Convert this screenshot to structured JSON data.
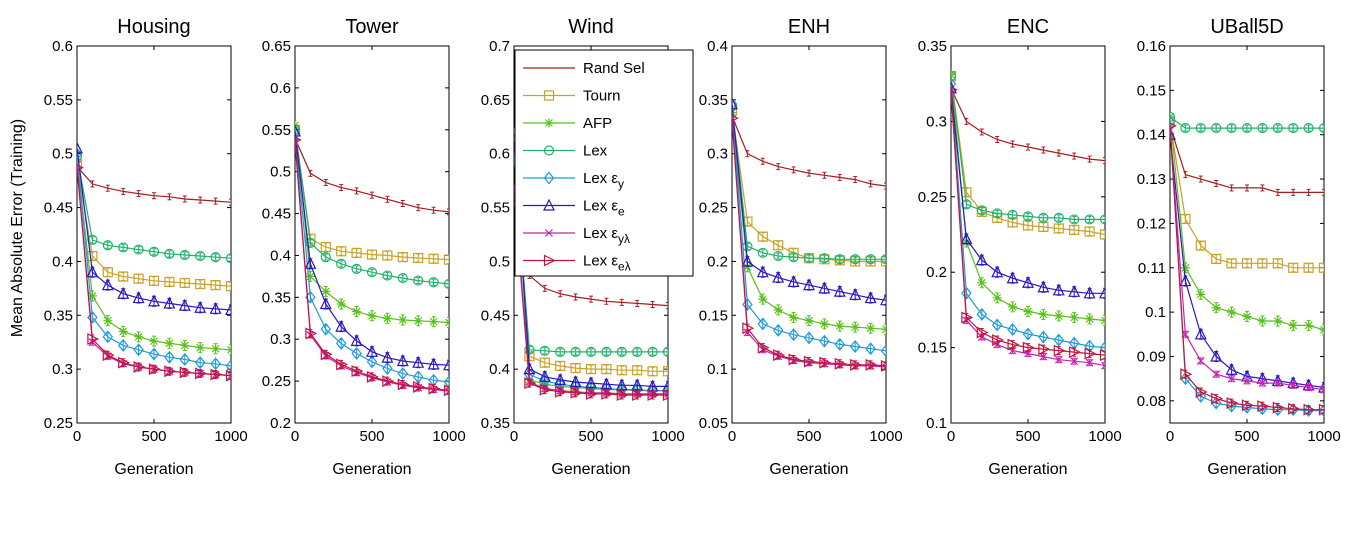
{
  "ylabel": "Mean Absolute Error (Training)",
  "legend": [
    {
      "label": "Rand Sel",
      "sub": "",
      "color": "#a31e1e",
      "marker": "none"
    },
    {
      "label": "Tourn",
      "sub": "",
      "color": "#c9a227",
      "marker": "square"
    },
    {
      "label": "AFP",
      "sub": "",
      "color": "#58c21c",
      "marker": "star"
    },
    {
      "label": "Lex",
      "sub": "",
      "color": "#1fb36a",
      "marker": "circle"
    },
    {
      "label": "Lex ε",
      "sub": "y",
      "color": "#1f9bd6",
      "marker": "diamond"
    },
    {
      "label": "Lex ε",
      "sub": "e",
      "color": "#2a18c0",
      "marker": "triangle"
    },
    {
      "label": "Lex ε",
      "sub": "yλ",
      "color": "#c424b4",
      "marker": "x"
    },
    {
      "label": "Lex ε",
      "sub": "eλ",
      "color": "#c0153c",
      "marker": "tri-right"
    }
  ],
  "chart_data": [
    {
      "type": "line",
      "title": "Housing",
      "xlabel": "Generation",
      "ylabel": "Mean Absolute Error (Training)",
      "xlim": [
        0,
        1000
      ],
      "ylim": [
        0.25,
        0.6
      ],
      "xticks": [
        "0",
        "500",
        "1000"
      ],
      "xtick_values": [
        0,
        500,
        1000
      ],
      "yticks": [
        "0.25",
        "0.3",
        "0.35",
        "0.4",
        "0.45",
        "0.5",
        "0.55",
        "0.6"
      ],
      "ytick_values": [
        0.25,
        0.3,
        0.35,
        0.4,
        0.45,
        0.5,
        0.55,
        0.6
      ],
      "x": [
        0,
        100,
        200,
        300,
        400,
        500,
        600,
        700,
        800,
        900,
        1000
      ],
      "series": [
        {
          "name": "Rand Sel",
          "values": [
            0.488,
            0.472,
            0.468,
            0.465,
            0.463,
            0.461,
            0.46,
            0.458,
            0.457,
            0.456,
            0.455
          ]
        },
        {
          "name": "Tourn",
          "values": [
            0.49,
            0.405,
            0.39,
            0.386,
            0.384,
            0.382,
            0.381,
            0.38,
            0.379,
            0.378,
            0.377
          ]
        },
        {
          "name": "AFP",
          "values": [
            0.495,
            0.368,
            0.345,
            0.335,
            0.33,
            0.326,
            0.324,
            0.322,
            0.32,
            0.319,
            0.318
          ]
        },
        {
          "name": "Lex",
          "values": [
            0.498,
            0.42,
            0.415,
            0.413,
            0.411,
            0.409,
            0.407,
            0.406,
            0.405,
            0.404,
            0.403
          ]
        },
        {
          "name": "Lex ε y",
          "values": [
            0.5,
            0.348,
            0.33,
            0.322,
            0.318,
            0.314,
            0.311,
            0.309,
            0.306,
            0.305,
            0.303
          ]
        },
        {
          "name": "Lex ε e",
          "values": [
            0.505,
            0.39,
            0.378,
            0.37,
            0.366,
            0.363,
            0.361,
            0.359,
            0.357,
            0.356,
            0.355
          ]
        },
        {
          "name": "Lex ε yλ",
          "values": [
            0.49,
            0.325,
            0.312,
            0.305,
            0.302,
            0.3,
            0.298,
            0.297,
            0.296,
            0.295,
            0.294
          ]
        },
        {
          "name": "Lex ε eλ",
          "values": [
            0.487,
            0.328,
            0.313,
            0.306,
            0.302,
            0.3,
            0.298,
            0.297,
            0.296,
            0.295,
            0.294
          ]
        }
      ]
    },
    {
      "type": "line",
      "title": "Tower",
      "xlabel": "Generation",
      "xlim": [
        0,
        1000
      ],
      "ylim": [
        0.2,
        0.65
      ],
      "xticks": [
        "0",
        "500",
        "1000"
      ],
      "xtick_values": [
        0,
        500,
        1000
      ],
      "yticks": [
        "0.2",
        "0.25",
        "0.3",
        "0.35",
        "0.4",
        "0.45",
        "0.5",
        "0.55",
        "0.6",
        "0.65"
      ],
      "ytick_values": [
        0.2,
        0.25,
        0.3,
        0.35,
        0.4,
        0.45,
        0.5,
        0.55,
        0.6,
        0.65
      ],
      "x": [
        0,
        100,
        200,
        300,
        400,
        500,
        600,
        700,
        800,
        900,
        1000
      ],
      "series": [
        {
          "name": "Rand Sel",
          "values": [
            0.54,
            0.498,
            0.487,
            0.481,
            0.477,
            0.472,
            0.467,
            0.462,
            0.457,
            0.454,
            0.452
          ]
        },
        {
          "name": "Tourn",
          "values": [
            0.55,
            0.42,
            0.41,
            0.405,
            0.403,
            0.401,
            0.4,
            0.398,
            0.397,
            0.396,
            0.395
          ]
        },
        {
          "name": "AFP",
          "values": [
            0.555,
            0.375,
            0.357,
            0.342,
            0.333,
            0.328,
            0.325,
            0.323,
            0.322,
            0.321,
            0.32
          ]
        },
        {
          "name": "Lex",
          "values": [
            0.55,
            0.415,
            0.398,
            0.39,
            0.384,
            0.38,
            0.376,
            0.373,
            0.37,
            0.368,
            0.366
          ]
        },
        {
          "name": "Lex ε y",
          "values": [
            0.545,
            0.35,
            0.312,
            0.295,
            0.283,
            0.273,
            0.265,
            0.259,
            0.255,
            0.251,
            0.249
          ]
        },
        {
          "name": "Lex ε e",
          "values": [
            0.548,
            0.39,
            0.342,
            0.315,
            0.298,
            0.285,
            0.278,
            0.274,
            0.272,
            0.27,
            0.269
          ]
        },
        {
          "name": "Lex ε yλ",
          "values": [
            0.535,
            0.305,
            0.28,
            0.268,
            0.26,
            0.254,
            0.249,
            0.245,
            0.242,
            0.24,
            0.238
          ]
        },
        {
          "name": "Lex ε eλ",
          "values": [
            0.538,
            0.307,
            0.282,
            0.27,
            0.262,
            0.255,
            0.25,
            0.246,
            0.243,
            0.241,
            0.239
          ]
        }
      ]
    },
    {
      "type": "line",
      "title": "Wind",
      "xlabel": "Generation",
      "xlim": [
        0,
        1000
      ],
      "ylim": [
        0.35,
        0.7
      ],
      "xticks": [
        "0",
        "500",
        "1000"
      ],
      "xtick_values": [
        0,
        500,
        1000
      ],
      "yticks": [
        "0.35",
        "0.4",
        "0.45",
        "0.5",
        "0.55",
        "0.6",
        "0.65",
        "0.7"
      ],
      "ytick_values": [
        0.35,
        0.4,
        0.45,
        0.5,
        0.55,
        0.6,
        0.65,
        0.7
      ],
      "x": [
        0,
        100,
        200,
        300,
        400,
        500,
        600,
        700,
        800,
        900,
        1000
      ],
      "series": [
        {
          "name": "Rand Sel",
          "values": [
            0.555,
            0.487,
            0.475,
            0.47,
            0.467,
            0.465,
            0.463,
            0.462,
            0.461,
            0.46,
            0.459
          ]
        },
        {
          "name": "Tourn",
          "values": [
            0.6,
            0.412,
            0.406,
            0.403,
            0.401,
            0.4,
            0.4,
            0.399,
            0.399,
            0.398,
            0.398
          ]
        },
        {
          "name": "AFP",
          "values": [
            0.62,
            0.39,
            0.386,
            0.384,
            0.383,
            0.382,
            0.381,
            0.381,
            0.38,
            0.38,
            0.38
          ]
        },
        {
          "name": "Lex",
          "values": [
            0.598,
            0.418,
            0.417,
            0.416,
            0.416,
            0.416,
            0.416,
            0.416,
            0.416,
            0.416,
            0.416
          ]
        },
        {
          "name": "Lex ε y",
          "values": [
            0.61,
            0.395,
            0.389,
            0.386,
            0.384,
            0.383,
            0.382,
            0.381,
            0.381,
            0.38,
            0.38
          ]
        },
        {
          "name": "Lex ε e",
          "values": [
            0.612,
            0.4,
            0.393,
            0.39,
            0.388,
            0.387,
            0.386,
            0.385,
            0.385,
            0.384,
            0.384
          ]
        },
        {
          "name": "Lex ε yλ",
          "values": [
            0.57,
            0.388,
            0.382,
            0.38,
            0.379,
            0.378,
            0.378,
            0.377,
            0.377,
            0.377,
            0.377
          ]
        },
        {
          "name": "Lex ε eλ",
          "values": [
            0.565,
            0.387,
            0.381,
            0.379,
            0.378,
            0.377,
            0.377,
            0.376,
            0.376,
            0.376,
            0.376
          ]
        }
      ]
    },
    {
      "type": "line",
      "title": "ENH",
      "xlabel": "Generation",
      "xlim": [
        0,
        1000
      ],
      "ylim": [
        0.05,
        0.4
      ],
      "xticks": [
        "0",
        "500",
        "1000"
      ],
      "xtick_values": [
        0,
        500,
        1000
      ],
      "yticks": [
        "0.05",
        "0.1",
        "0.15",
        "0.2",
        "0.25",
        "0.3",
        "0.35",
        "0.4"
      ],
      "ytick_values": [
        0.05,
        0.1,
        0.15,
        0.2,
        0.25,
        0.3,
        0.35,
        0.4
      ],
      "x": [
        0,
        100,
        200,
        300,
        400,
        500,
        600,
        700,
        800,
        900,
        1000
      ],
      "series": [
        {
          "name": "Rand Sel",
          "values": [
            0.335,
            0.3,
            0.293,
            0.288,
            0.285,
            0.282,
            0.28,
            0.278,
            0.276,
            0.272,
            0.27
          ]
        },
        {
          "name": "Tourn",
          "values": [
            0.34,
            0.237,
            0.223,
            0.215,
            0.208,
            0.203,
            0.202,
            0.201,
            0.2,
            0.2,
            0.2
          ]
        },
        {
          "name": "AFP",
          "values": [
            0.338,
            0.195,
            0.165,
            0.155,
            0.148,
            0.145,
            0.142,
            0.14,
            0.139,
            0.138,
            0.137
          ]
        },
        {
          "name": "Lex",
          "values": [
            0.345,
            0.214,
            0.208,
            0.205,
            0.204,
            0.203,
            0.203,
            0.202,
            0.202,
            0.202,
            0.202
          ]
        },
        {
          "name": "Lex ε y",
          "values": [
            0.345,
            0.16,
            0.142,
            0.136,
            0.132,
            0.129,
            0.126,
            0.123,
            0.121,
            0.119,
            0.117
          ]
        },
        {
          "name": "Lex ε e",
          "values": [
            0.346,
            0.2,
            0.19,
            0.185,
            0.181,
            0.178,
            0.175,
            0.172,
            0.169,
            0.166,
            0.164
          ]
        },
        {
          "name": "Lex ε yλ",
          "values": [
            0.332,
            0.134,
            0.118,
            0.112,
            0.108,
            0.106,
            0.105,
            0.104,
            0.103,
            0.103,
            0.102
          ]
        },
        {
          "name": "Lex ε eλ",
          "values": [
            0.333,
            0.138,
            0.12,
            0.113,
            0.109,
            0.107,
            0.106,
            0.105,
            0.104,
            0.104,
            0.103
          ]
        }
      ]
    },
    {
      "type": "line",
      "title": "ENC",
      "xlabel": "Generation",
      "xlim": [
        0,
        1000
      ],
      "ylim": [
        0.1,
        0.35
      ],
      "xticks": [
        "0",
        "500",
        "1000"
      ],
      "xtick_values": [
        0,
        500,
        1000
      ],
      "yticks": [
        "0.1",
        "0.15",
        "0.2",
        "0.25",
        "0.3",
        "0.35"
      ],
      "ytick_values": [
        0.1,
        0.15,
        0.2,
        0.25,
        0.3,
        0.35
      ],
      "x": [
        0,
        100,
        200,
        300,
        400,
        500,
        600,
        700,
        800,
        900,
        1000
      ],
      "series": [
        {
          "name": "Rand Sel",
          "values": [
            0.322,
            0.3,
            0.293,
            0.288,
            0.285,
            0.283,
            0.281,
            0.279,
            0.277,
            0.275,
            0.274
          ]
        },
        {
          "name": "Tourn",
          "values": [
            0.33,
            0.253,
            0.24,
            0.236,
            0.233,
            0.231,
            0.23,
            0.229,
            0.228,
            0.227,
            0.225
          ]
        },
        {
          "name": "AFP",
          "values": [
            0.331,
            0.22,
            0.193,
            0.183,
            0.177,
            0.174,
            0.172,
            0.171,
            0.17,
            0.169,
            0.168
          ]
        },
        {
          "name": "Lex",
          "values": [
            0.33,
            0.245,
            0.241,
            0.239,
            0.238,
            0.237,
            0.236,
            0.236,
            0.235,
            0.235,
            0.235
          ]
        },
        {
          "name": "Lex ε y",
          "values": [
            0.325,
            0.186,
            0.172,
            0.165,
            0.162,
            0.159,
            0.157,
            0.155,
            0.153,
            0.151,
            0.15
          ]
        },
        {
          "name": "Lex ε e",
          "values": [
            0.322,
            0.222,
            0.208,
            0.2,
            0.196,
            0.193,
            0.19,
            0.188,
            0.187,
            0.186,
            0.186
          ]
        },
        {
          "name": "Lex ε yλ",
          "values": [
            0.32,
            0.168,
            0.157,
            0.152,
            0.148,
            0.146,
            0.144,
            0.142,
            0.141,
            0.14,
            0.138
          ]
        },
        {
          "name": "Lex ε eλ",
          "values": [
            0.321,
            0.17,
            0.16,
            0.155,
            0.152,
            0.15,
            0.149,
            0.148,
            0.147,
            0.146,
            0.145
          ]
        }
      ]
    },
    {
      "type": "line",
      "title": "UBall5D",
      "xlabel": "Generation",
      "xlim": [
        0,
        1000
      ],
      "ylim": [
        0.075,
        0.16
      ],
      "xticks": [
        "0",
        "500",
        "1000"
      ],
      "xtick_values": [
        0,
        500,
        1000
      ],
      "yticks": [
        "0.08",
        "0.09",
        "0.1",
        "0.11",
        "0.12",
        "0.13",
        "0.14",
        "0.15",
        "0.16"
      ],
      "ytick_values": [
        0.08,
        0.09,
        0.1,
        0.11,
        0.12,
        0.13,
        0.14,
        0.15,
        0.16
      ],
      "x": [
        0,
        100,
        200,
        300,
        400,
        500,
        600,
        700,
        800,
        900,
        1000
      ],
      "series": [
        {
          "name": "Rand Sel",
          "values": [
            0.142,
            0.131,
            0.13,
            0.129,
            0.128,
            0.128,
            0.128,
            0.127,
            0.127,
            0.127,
            0.127
          ]
        },
        {
          "name": "Tourn",
          "values": [
            0.143,
            0.121,
            0.115,
            0.112,
            0.111,
            0.111,
            0.111,
            0.111,
            0.11,
            0.11,
            0.11
          ]
        },
        {
          "name": "AFP",
          "values": [
            0.144,
            0.11,
            0.104,
            0.101,
            0.1,
            0.099,
            0.098,
            0.098,
            0.097,
            0.097,
            0.096
          ]
        },
        {
          "name": "Lex",
          "values": [
            0.144,
            0.1415,
            0.1415,
            0.1415,
            0.1415,
            0.1415,
            0.1415,
            0.1415,
            0.1415,
            0.1415,
            0.1415
          ]
        },
        {
          "name": "Lex ε y",
          "values": [
            0.143,
            0.085,
            0.081,
            0.0795,
            0.0788,
            0.0785,
            0.0782,
            0.078,
            0.078,
            0.0778,
            0.0778
          ]
        },
        {
          "name": "Lex ε e",
          "values": [
            0.14,
            0.107,
            0.095,
            0.09,
            0.087,
            0.0855,
            0.085,
            0.0845,
            0.084,
            0.0835,
            0.083
          ]
        },
        {
          "name": "Lex ε yλ",
          "values": [
            0.141,
            0.095,
            0.089,
            0.086,
            0.085,
            0.0845,
            0.084,
            0.084,
            0.0835,
            0.083,
            0.0825
          ]
        },
        {
          "name": "Lex ε eλ",
          "values": [
            0.142,
            0.086,
            0.082,
            0.0805,
            0.0795,
            0.079,
            0.0788,
            0.0785,
            0.0782,
            0.078,
            0.078
          ]
        }
      ]
    }
  ]
}
